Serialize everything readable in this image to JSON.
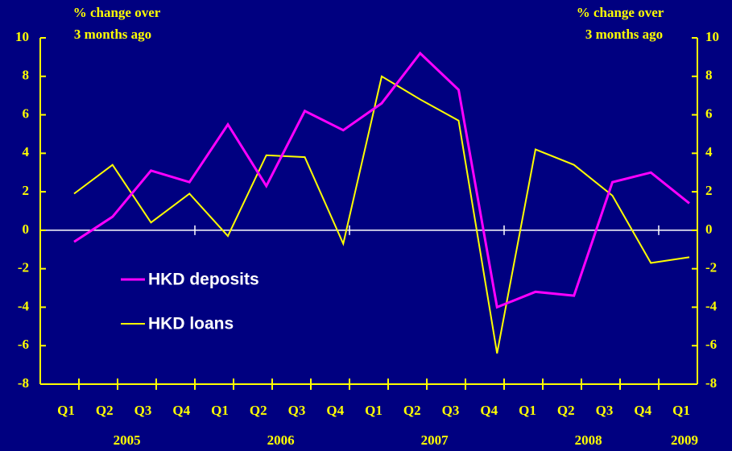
{
  "chart_data": {
    "type": "line",
    "y_label": [
      "% change over",
      "3 months ago"
    ],
    "y2_label": [
      "% change over",
      "3 months ago"
    ],
    "categories": [
      "Q1",
      "Q2",
      "Q3",
      "Q4",
      "Q1",
      "Q2",
      "Q3",
      "Q4",
      "Q1",
      "Q2",
      "Q3",
      "Q4",
      "Q1",
      "Q2",
      "Q3",
      "Q4",
      "Q1"
    ],
    "years": [
      "2005",
      "2006",
      "2007",
      "2008",
      "2009"
    ],
    "series": [
      {
        "name": "HKD deposits",
        "color": "#ff00ff",
        "values": [
          -0.6,
          0.7,
          3.1,
          2.5,
          5.5,
          2.3,
          6.2,
          5.2,
          6.6,
          9.2,
          7.3,
          -4.0,
          -3.2,
          -3.4,
          2.5,
          3.0,
          1.4
        ]
      },
      {
        "name": "HKD loans",
        "color": "#ffff00",
        "values": [
          1.9,
          3.4,
          0.4,
          1.9,
          -0.3,
          3.9,
          3.8,
          -0.7,
          8.0,
          6.8,
          5.7,
          -6.4,
          4.2,
          3.4,
          1.8,
          -1.7,
          -1.4
        ]
      }
    ],
    "ylim": [
      -8,
      10
    ],
    "yticks": [
      -8,
      -6,
      -4,
      -2,
      0,
      2,
      4,
      6,
      8,
      10
    ],
    "y2lim": [
      -8,
      10
    ],
    "y2ticks": [
      -8,
      -6,
      -4,
      -2,
      0,
      2,
      4,
      6,
      8,
      10
    ]
  }
}
